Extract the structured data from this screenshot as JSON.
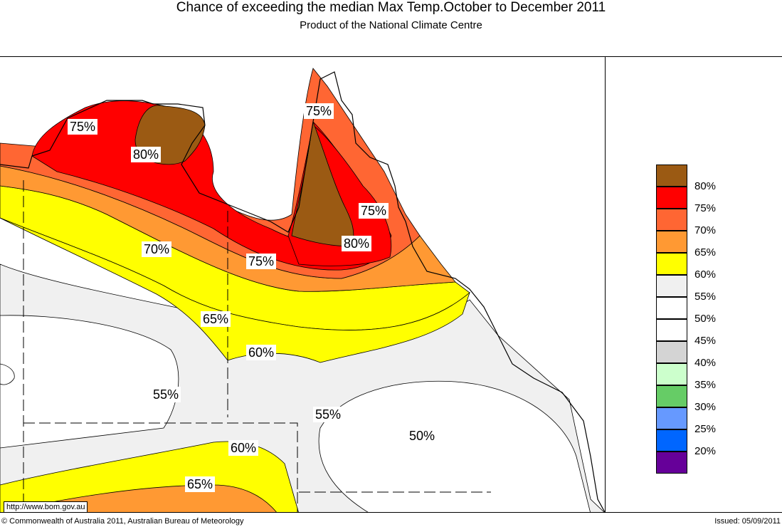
{
  "header": {
    "title": "Chance of exceeding the median Max Temp.October to December 2011",
    "subtitle": "Product of the National Climate Centre"
  },
  "legend": {
    "items": [
      {
        "label": "80%",
        "color": "#9b5a13"
      },
      {
        "label": "75%",
        "color": "#ff0000"
      },
      {
        "label": "70%",
        "color": "#ff6633"
      },
      {
        "label": "65%",
        "color": "#ff9933"
      },
      {
        "label": "60%",
        "color": "#ffff00"
      },
      {
        "label": "55%",
        "color": "#f0f0f0"
      },
      {
        "label": "50%",
        "color": "#ffffff"
      },
      {
        "label": "45%",
        "color": "#ffffff"
      },
      {
        "label": "40%",
        "color": "#d4d4d4"
      },
      {
        "label": "35%",
        "color": "#ccffcc"
      },
      {
        "label": "30%",
        "color": "#66cc66"
      },
      {
        "label": "25%",
        "color": "#6699ff"
      },
      {
        "label": "20%",
        "color": "#0066ff"
      },
      {
        "label": "",
        "color": "#660099"
      }
    ]
  },
  "map_labels": {
    "l1": "75%",
    "l2": "80%",
    "l3": "75%",
    "l4": "75%",
    "l5": "80%",
    "l6": "70%",
    "l7": "75%",
    "l8": "65%",
    "l9": "60%",
    "l10": "55%",
    "l11": "55%",
    "l12": "50%",
    "l13": "60%",
    "l14": "65%"
  },
  "footer": {
    "url": "http://www.bom.gov.au",
    "copyright": "© Commonwealth of Australia 2011, Australian Bureau of Meteorology",
    "issued": "Issued: 05/09/2011"
  }
}
